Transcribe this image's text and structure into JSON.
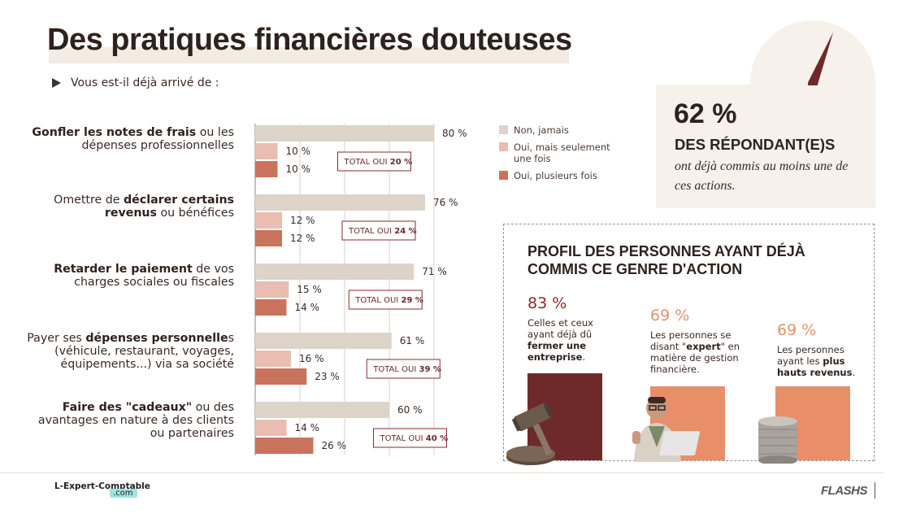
{
  "page": {
    "title": "Des pratiques financières douteuses",
    "intro": "Vous est-il déjà arrivé de :"
  },
  "questions": [
    {
      "pre": "",
      "bold": "Gonfler les notes de frais",
      "post": " ou les dépenses professionnelles"
    },
    {
      "pre": "Omettre de ",
      "bold": "déclarer certains revenus",
      "post": " ou bénéfices"
    },
    {
      "pre": "",
      "bold": "Retarder le paiement",
      "post": " de vos charges sociales ou fiscales"
    },
    {
      "pre": "Payer ses ",
      "bold": "dépenses personnelle",
      "post": "s (véhicule, restaurant, voyages, équipements...) via sa société"
    },
    {
      "pre": "",
      "bold": "Faire des \"cadeaux\"",
      "post": " ou des avantages en nature à des clients ou partenaires"
    }
  ],
  "chart_data": {
    "type": "bar",
    "orientation": "horizontal",
    "categories": [
      "Gonfler les notes de frais ou les dépenses professionnelles",
      "Omettre de déclarer certains revenus ou bénéfices",
      "Retarder le paiement de vos charges sociales ou fiscales",
      "Payer ses dépenses personnelles (véhicule, restaurant, voyages, équipements...) via sa société",
      "Faire des \"cadeaux\" ou des avantages en nature à des clients ou partenaires"
    ],
    "series": [
      {
        "name": "Non, jamais",
        "values": [
          80,
          76,
          71,
          61,
          60
        ],
        "color": "#ddd3c9"
      },
      {
        "name": "Oui, mais seulement une fois",
        "values": [
          10,
          12,
          15,
          16,
          14
        ],
        "color": "#e9bdb1"
      },
      {
        "name": "Oui, plusieurs fois",
        "values": [
          10,
          12,
          14,
          23,
          26
        ],
        "color": "#c9735d"
      }
    ],
    "value_labels": [
      [
        "80 %",
        "10 %",
        "10 %"
      ],
      [
        "76 %",
        "12 %",
        "12 %"
      ],
      [
        "71 %",
        "15 %",
        "14 %"
      ],
      [
        "61 %",
        "16 %",
        "23 %"
      ],
      [
        "60 %",
        "14 %",
        "26 %"
      ]
    ],
    "total_oui": [
      20,
      24,
      29,
      39,
      40
    ],
    "total_label": "TOTAL OUI",
    "xlim": [
      0,
      80
    ],
    "grid": true
  },
  "legend": [
    {
      "label": "Non, jamais",
      "color": "#ddd3c9"
    },
    {
      "label": "Oui, mais seulement une fois",
      "color": "#e9bdb1"
    },
    {
      "label": "Oui, plusieurs fois",
      "color": "#c9735d"
    }
  ],
  "highlight": {
    "value": "62 %",
    "headline": "DES RÉPONDANT(E)S",
    "text": "ont déjà commis au moins une de ces actions.",
    "gauge_fraction": 0.62
  },
  "profil": {
    "title": "PROFIL DES PERSONNES AYANT DÉJÀ COMMIS CE GENRE D'ACTION",
    "cols": [
      {
        "value": "83 %",
        "pre": "Celles et ceux ayant déjà dû ",
        "bold": "fermer une entreprise",
        "post": ".",
        "color": "#8a2a2a",
        "bar": "#6e2a2a",
        "icon": "gavel-icon"
      },
      {
        "value": "69 %",
        "pre": "Les personnes se disant \"",
        "bold": "expert",
        "post": "\" en matière de gestion financière.",
        "color": "#e88f6a",
        "bar": "#e88f6a",
        "icon": "person-laptop-icon"
      },
      {
        "value": "69 %",
        "pre": "Les personnes ayant les ",
        "bold": "plus hauts revenus",
        "post": ".",
        "color": "#e88f6a",
        "bar": "#e88f6a",
        "icon": "coins-icon"
      }
    ]
  },
  "footer": {
    "logo": "L-Expert-Comptable",
    "logo_suffix": ".com",
    "brand": "FLASHS"
  }
}
